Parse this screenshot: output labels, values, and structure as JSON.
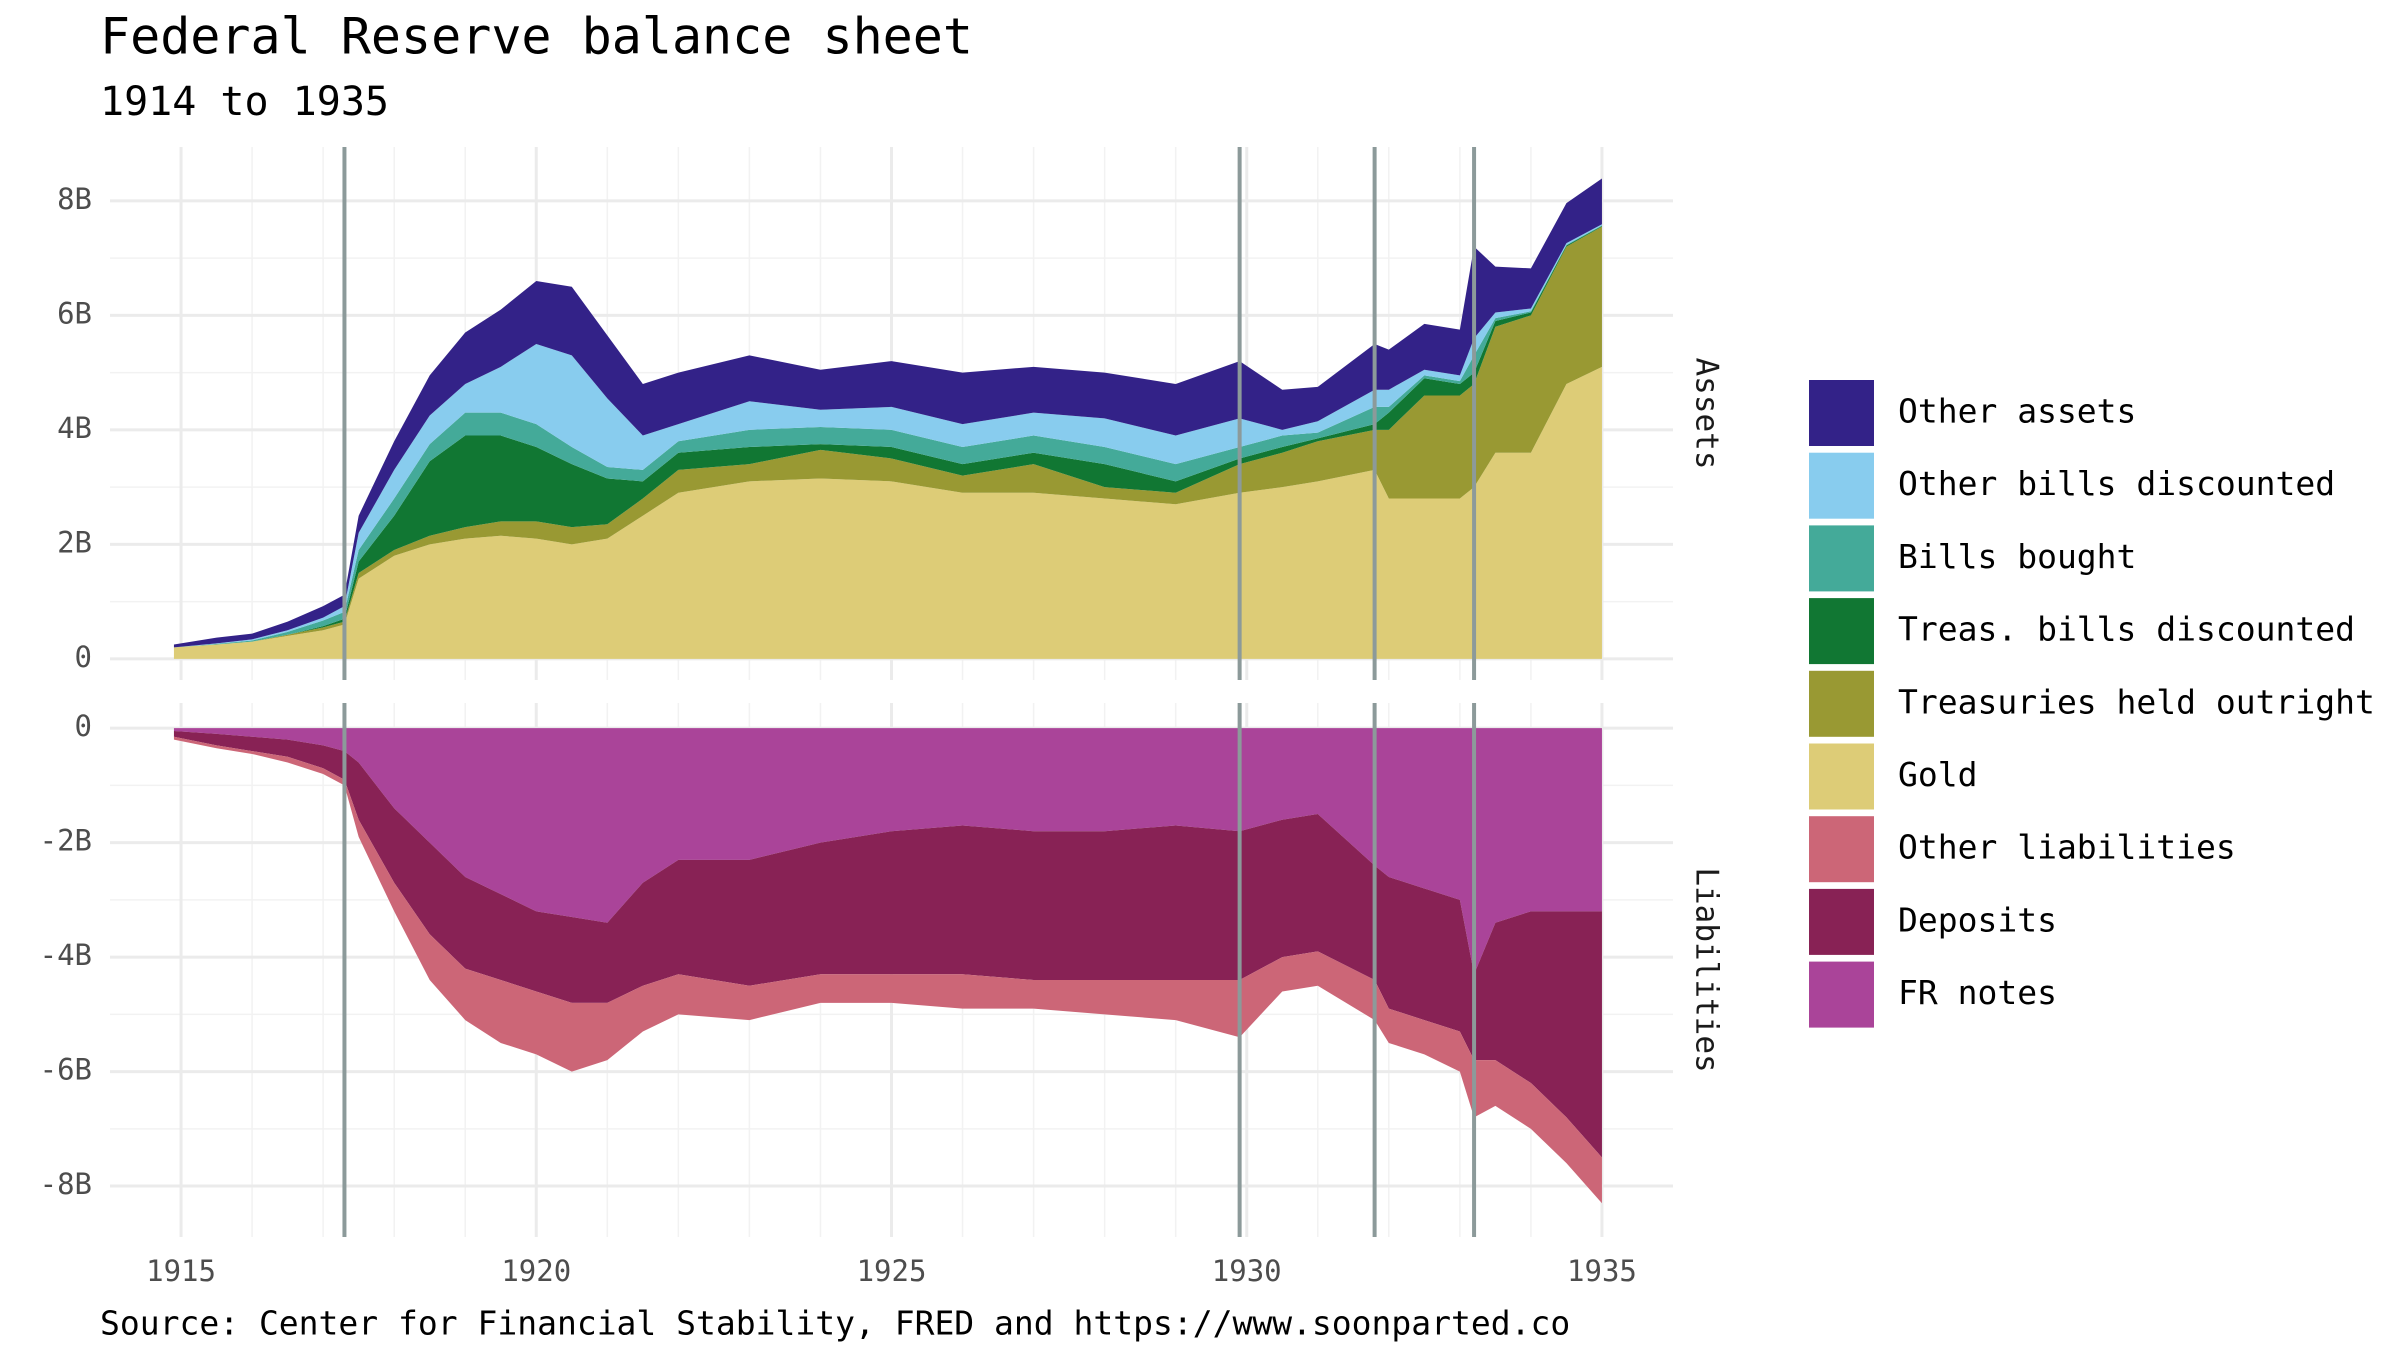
{
  "title": "Federal Reserve balance sheet",
  "subtitle": "1914 to 1935",
  "caption": "Source: Center for Financial Stability, FRED and https://www.soonparted.co",
  "vlines": [
    1917.3,
    1929.9,
    1931.8,
    1933.2
  ],
  "vline_color": "#8c9a9a",
  "chart_data": [
    {
      "type": "area",
      "label": "Assets",
      "stacked": true,
      "x": [
        1914.9,
        1915.5,
        1916,
        1916.5,
        1917,
        1917.3,
        1917.5,
        1918,
        1918.5,
        1919,
        1919.5,
        1920,
        1920.5,
        1921,
        1921.5,
        1922,
        1923,
        1924,
        1925,
        1926,
        1927,
        1928,
        1929,
        1929.9,
        1930.5,
        1931,
        1931.8,
        1932,
        1932.5,
        1933,
        1933.2,
        1933.5,
        1934,
        1934.5,
        1935
      ],
      "xlim": [
        1914,
        1936
      ],
      "ylim": [
        -0.37,
        8.94
      ],
      "yticks": [
        0,
        {
          "value": 2,
          "label": "2B"
        },
        {
          "value": 4,
          "label": "4B"
        },
        {
          "value": 6,
          "label": "6B"
        },
        {
          "value": 8,
          "label": "8B"
        }
      ],
      "series": [
        {
          "name": "Gold",
          "color": "#ddcc77",
          "values": [
            0.2,
            0.25,
            0.3,
            0.4,
            0.5,
            0.6,
            1.4,
            1.8,
            2.0,
            2.1,
            2.15,
            2.1,
            2.0,
            2.1,
            2.5,
            2.9,
            3.1,
            3.15,
            3.1,
            2.9,
            2.9,
            2.8,
            2.7,
            2.9,
            3.0,
            3.1,
            3.3,
            2.8,
            2.8,
            2.8,
            3.0,
            3.6,
            3.6,
            4.8,
            5.1
          ]
        },
        {
          "name": "Treasuries held outright",
          "color": "#999933",
          "values": [
            0,
            0,
            0,
            0.02,
            0.05,
            0.05,
            0.1,
            0.1,
            0.15,
            0.2,
            0.25,
            0.3,
            0.3,
            0.25,
            0.3,
            0.4,
            0.3,
            0.5,
            0.4,
            0.3,
            0.5,
            0.2,
            0.2,
            0.5,
            0.6,
            0.7,
            0.7,
            1.2,
            1.8,
            1.8,
            1.8,
            2.2,
            2.4,
            2.4,
            2.45
          ]
        },
        {
          "name": "Treas. bills discounted",
          "color": "#117733",
          "values": [
            0,
            0,
            0,
            0,
            0.02,
            0.05,
            0.2,
            0.6,
            1.3,
            1.6,
            1.5,
            1.3,
            1.1,
            0.8,
            0.3,
            0.3,
            0.3,
            0.1,
            0.2,
            0.2,
            0.2,
            0.4,
            0.2,
            0.1,
            0.1,
            0.05,
            0.1,
            0.3,
            0.3,
            0.2,
            0.2,
            0.1,
            0.05,
            0.02,
            0.01
          ]
        },
        {
          "name": "Bills bought",
          "color": "#44aa99",
          "values": [
            0,
            0.01,
            0.02,
            0.05,
            0.1,
            0.12,
            0.2,
            0.3,
            0.3,
            0.4,
            0.4,
            0.4,
            0.3,
            0.2,
            0.2,
            0.2,
            0.3,
            0.3,
            0.3,
            0.3,
            0.3,
            0.3,
            0.3,
            0.2,
            0.2,
            0.1,
            0.3,
            0.1,
            0.05,
            0.05,
            0.3,
            0.05,
            0.02,
            0.01,
            0.01
          ]
        },
        {
          "name": "Other bills discounted",
          "color": "#88ccee",
          "values": [
            0,
            0.01,
            0.02,
            0.03,
            0.05,
            0.1,
            0.3,
            0.5,
            0.5,
            0.5,
            0.8,
            1.4,
            1.6,
            1.2,
            0.6,
            0.3,
            0.5,
            0.3,
            0.4,
            0.4,
            0.4,
            0.5,
            0.5,
            0.5,
            0.1,
            0.2,
            0.3,
            0.3,
            0.1,
            0.1,
            0.3,
            0.1,
            0.05,
            0.03,
            0.02
          ]
        },
        {
          "name": "Other assets",
          "color": "#332288",
          "values": [
            0.05,
            0.1,
            0.1,
            0.15,
            0.2,
            0.2,
            0.3,
            0.5,
            0.7,
            0.9,
            1.0,
            1.1,
            1.2,
            1.1,
            0.9,
            0.9,
            0.8,
            0.7,
            0.8,
            0.9,
            0.8,
            0.8,
            0.9,
            1.0,
            0.7,
            0.6,
            0.8,
            0.7,
            0.8,
            0.8,
            1.6,
            0.8,
            0.7,
            0.7,
            0.8
          ]
        }
      ]
    },
    {
      "type": "area",
      "label": "Liabilities",
      "stacked": true,
      "x": [
        1914.9,
        1915.5,
        1916,
        1916.5,
        1917,
        1917.3,
        1917.5,
        1918,
        1918.5,
        1919,
        1919.5,
        1920,
        1920.5,
        1921,
        1921.5,
        1922,
        1923,
        1924,
        1925,
        1926,
        1927,
        1928,
        1929,
        1929.9,
        1930.5,
        1931,
        1931.8,
        1932,
        1932.5,
        1933,
        1933.2,
        1933.5,
        1934,
        1934.5,
        1935
      ],
      "xlim": [
        1914,
        1936
      ],
      "xticks": [
        1915,
        1920,
        1925,
        1930,
        1935
      ],
      "ylim": [
        -8.89,
        0.44
      ],
      "yticks": [
        {
          "value": -8,
          "label": "-8B"
        },
        {
          "value": -6,
          "label": "-6B"
        },
        {
          "value": -4,
          "label": "-4B"
        },
        {
          "value": -2,
          "label": "-2B"
        },
        0
      ],
      "series": [
        {
          "name": "FR notes",
          "color": "#aa4499",
          "values": [
            -0.05,
            -0.1,
            -0.15,
            -0.2,
            -0.3,
            -0.4,
            -0.6,
            -1.4,
            -2.0,
            -2.6,
            -2.9,
            -3.2,
            -3.3,
            -3.4,
            -2.7,
            -2.3,
            -2.3,
            -2.0,
            -1.8,
            -1.7,
            -1.8,
            -1.8,
            -1.7,
            -1.8,
            -1.6,
            -1.5,
            -2.4,
            -2.6,
            -2.8,
            -3.0,
            -4.3,
            -3.4,
            -3.2,
            -3.2,
            -3.2
          ]
        },
        {
          "name": "Deposits",
          "color": "#882255",
          "values": [
            -0.1,
            -0.2,
            -0.25,
            -0.3,
            -0.4,
            -0.5,
            -1.0,
            -1.3,
            -1.6,
            -1.6,
            -1.5,
            -1.4,
            -1.5,
            -1.4,
            -1.8,
            -2.0,
            -2.2,
            -2.3,
            -2.5,
            -2.6,
            -2.6,
            -2.6,
            -2.7,
            -2.6,
            -2.4,
            -2.4,
            -2.0,
            -2.3,
            -2.3,
            -2.3,
            -1.5,
            -2.4,
            -3.0,
            -3.6,
            -4.3
          ]
        },
        {
          "name": "Other liabilities",
          "color": "#cc6677",
          "values": [
            -0.05,
            -0.05,
            -0.05,
            -0.1,
            -0.1,
            -0.1,
            -0.3,
            -0.5,
            -0.8,
            -0.9,
            -1.1,
            -1.1,
            -1.2,
            -1.0,
            -0.8,
            -0.7,
            -0.6,
            -0.5,
            -0.5,
            -0.6,
            -0.5,
            -0.6,
            -0.7,
            -1.0,
            -0.6,
            -0.6,
            -0.7,
            -0.6,
            -0.6,
            -0.7,
            -1.0,
            -0.8,
            -0.8,
            -0.8,
            -0.8
          ]
        }
      ]
    }
  ]
}
